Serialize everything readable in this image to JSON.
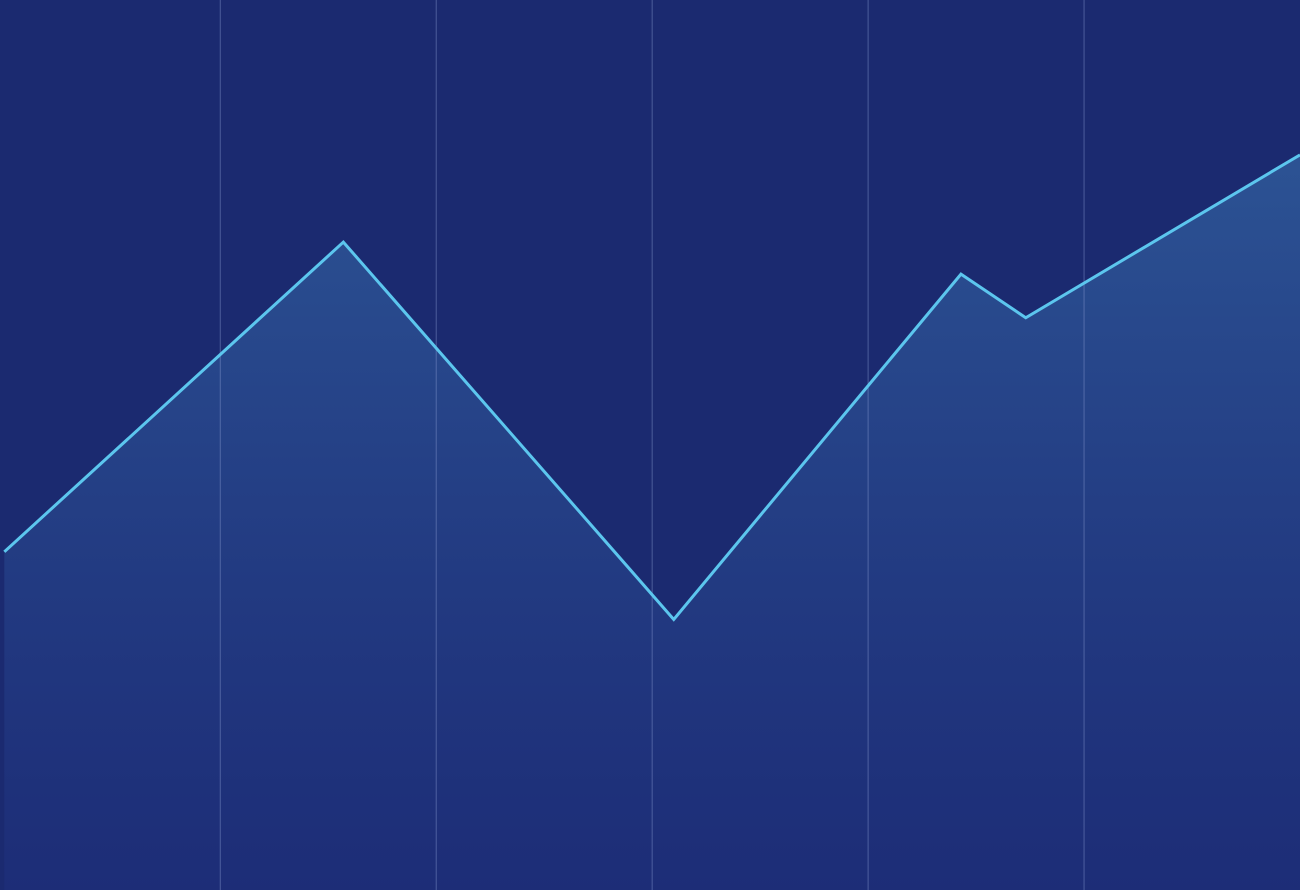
{
  "chart_data": {
    "type": "area",
    "x": [
      0,
      1.57,
      3.1,
      4.43,
      4.73,
      6
    ],
    "values": [
      38,
      72.8,
      30.4,
      69.2,
      64.3,
      82.6
    ],
    "color": "#5cc6ee",
    "xlim": [
      -0.02,
      6
    ],
    "ylim": [
      0,
      100
    ],
    "xticks": [
      1,
      2,
      3,
      4,
      5
    ],
    "grid": true
  }
}
